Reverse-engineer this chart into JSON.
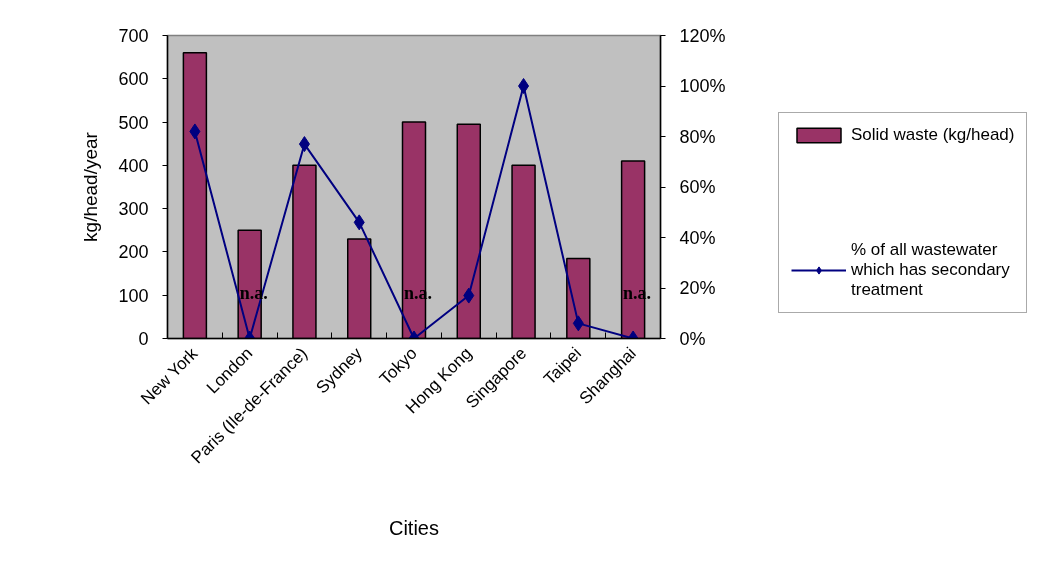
{
  "chart_data": {
    "type": "bar",
    "xlabel": "Cities",
    "ylabel": "kg/head/year",
    "categories": [
      "New York",
      "London",
      "Paris (Ile-de-France)",
      "Sydney",
      "Tokyo",
      "Hong Kong",
      "Singapore",
      "Taipei",
      "Shanghai"
    ],
    "series": [
      {
        "name": "Solid waste (kg/head)",
        "color": "#993366",
        "values": [
          660,
          250,
          400,
          230,
          500,
          495,
          400,
          185,
          410
        ]
      },
      {
        "name": "% of all wastewater which has secondary treatment",
        "type": "line",
        "axis": "y2",
        "color": "#000080",
        "marker": "diamond",
        "values": [
          82,
          0,
          77,
          46,
          0,
          17,
          100,
          6,
          0
        ]
      }
    ],
    "ylim": [
      0,
      700
    ],
    "yticks": [
      0,
      100,
      200,
      300,
      400,
      500,
      600,
      700
    ],
    "y2lim": [
      0,
      120
    ],
    "y2ticks": [
      {
        "value": 0,
        "label": "0%"
      },
      {
        "value": 20,
        "label": "20%"
      },
      {
        "value": 40,
        "label": "40%"
      },
      {
        "value": 60,
        "label": "60%"
      },
      {
        "value": 80,
        "label": "80%"
      },
      {
        "value": 100,
        "label": "100%"
      },
      {
        "value": 120,
        "label": "120%"
      }
    ],
    "annotations": [
      {
        "text": "n.a.",
        "x": "London",
        "y": 0
      },
      {
        "text": "n.a.",
        "x": "Tokyo",
        "y": 0
      },
      {
        "text": "n.a.",
        "x": "Shanghai",
        "y": 0
      }
    ],
    "legend": "right",
    "grid": false
  }
}
